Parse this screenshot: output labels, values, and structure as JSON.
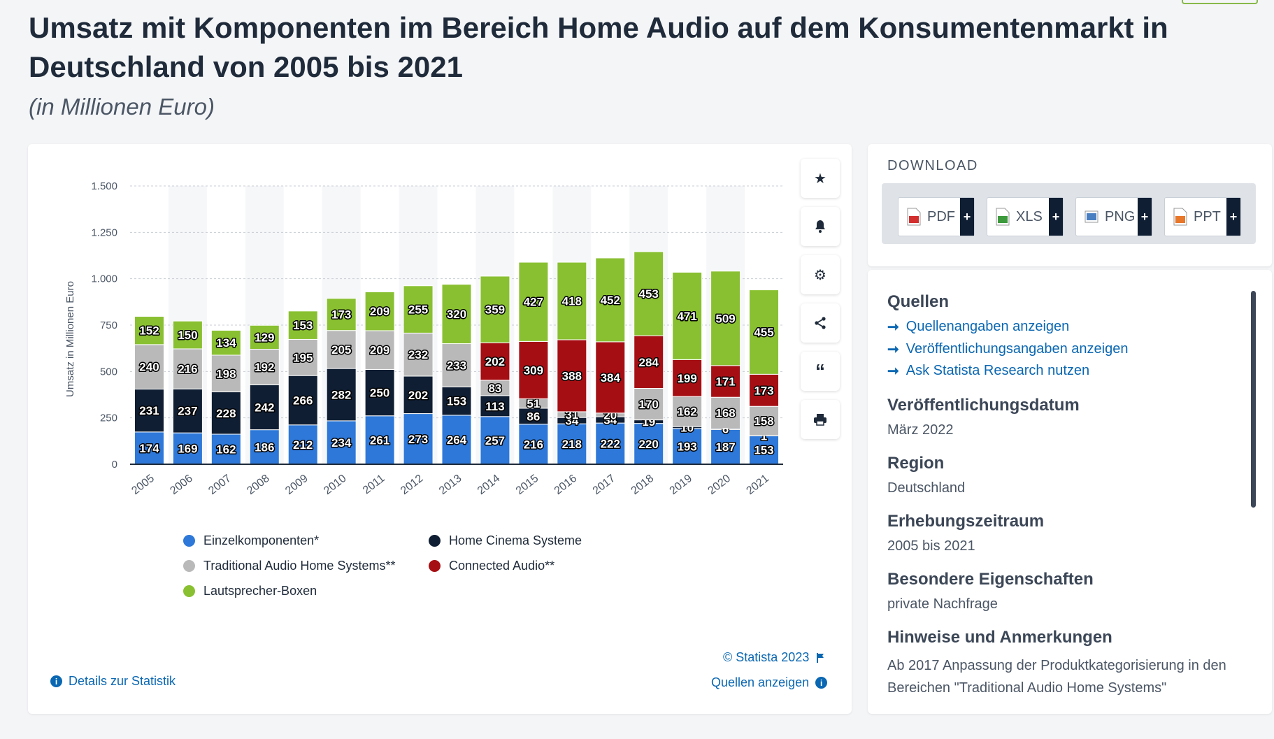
{
  "header": {
    "title": "Umsatz mit Komponenten im Bereich Home Audio auf dem Konsumentenmarkt in Deutschland von 2005 bis 2021",
    "subtitle": "(in Millionen Euro)"
  },
  "toolbar": {
    "icons": [
      "star-icon",
      "bell-icon",
      "gear-icon",
      "share-icon",
      "quote-icon",
      "print-icon"
    ]
  },
  "chart_data": {
    "type": "bar",
    "stacked": true,
    "categories": [
      "2005",
      "2006",
      "2007",
      "2008",
      "2009",
      "2010",
      "2011",
      "2012",
      "2013",
      "2014",
      "2015",
      "2016",
      "2017",
      "2018",
      "2019",
      "2020",
      "2021"
    ],
    "ylabel": "Umsatz in Millionen Euro",
    "ylim": [
      0,
      1500
    ],
    "yticks": [
      0,
      250,
      500,
      750,
      1000,
      1250,
      1500
    ],
    "ytick_labels": [
      "0",
      "250",
      "500",
      "750",
      "1.000",
      "1.250",
      "1.500"
    ],
    "grid": true,
    "legend_position": "bottom",
    "series": [
      {
        "name": "Einzelkomponenten*",
        "color": "#2d78d8",
        "values": [
          174,
          169,
          162,
          186,
          212,
          234,
          261,
          273,
          264,
          257,
          216,
          218,
          222,
          220,
          193,
          187,
          153
        ]
      },
      {
        "name": "Home Cinema Systeme",
        "color": "#0f1e33",
        "values": [
          231,
          237,
          228,
          242,
          266,
          282,
          250,
          202,
          153,
          113,
          86,
          34,
          34,
          19,
          10,
          6,
          1
        ]
      },
      {
        "name": "Traditional Audio Home Systems**",
        "color": "#b9b9b9",
        "values": [
          240,
          216,
          198,
          192,
          195,
          205,
          209,
          232,
          233,
          83,
          51,
          31,
          20,
          170,
          162,
          168,
          158
        ]
      },
      {
        "name": "Connected Audio**",
        "color": "#a50f14",
        "values": [
          0,
          0,
          0,
          0,
          0,
          0,
          0,
          0,
          0,
          202,
          309,
          388,
          384,
          284,
          199,
          171,
          173
        ]
      },
      {
        "name": "Lautsprecher-Boxen",
        "color": "#89c031",
        "values": [
          152,
          150,
          134,
          129,
          153,
          173,
          209,
          255,
          320,
          359,
          427,
          418,
          452,
          453,
          471,
          509,
          455
        ]
      }
    ],
    "legend_order": [
      0,
      1,
      2,
      3,
      4
    ]
  },
  "footer": {
    "copyright": "© Statista 2023",
    "details_link": "Details zur Statistik",
    "sources_link": "Quellen anzeigen"
  },
  "download": {
    "title": "DOWNLOAD",
    "buttons": [
      {
        "label": "PDF",
        "color": "#d32f2f"
      },
      {
        "label": "XLS",
        "color": "#3c9a3c"
      },
      {
        "label": "PNG",
        "color": "#4a7fc1"
      },
      {
        "label": "PPT",
        "color": "#e8772a"
      }
    ],
    "plus": "+"
  },
  "info": {
    "quellen_title": "Quellen",
    "links": [
      "Quellenangaben anzeigen",
      "Veröffentlichungsangaben anzeigen",
      "Ask Statista Research nutzen"
    ],
    "sections": [
      {
        "title": "Veröffentlichungsdatum",
        "value": "März 2022"
      },
      {
        "title": "Region",
        "value": "Deutschland"
      },
      {
        "title": "Erhebungszeitraum",
        "value": "2005 bis 2021"
      },
      {
        "title": "Besondere Eigenschaften",
        "value": "private Nachfrage"
      },
      {
        "title": "Hinweise und Anmerkungen",
        "value": "Ab 2017 Anpassung der Produktkategorisierung in den Bereichen \"Traditional Audio Home Systems\""
      }
    ]
  }
}
